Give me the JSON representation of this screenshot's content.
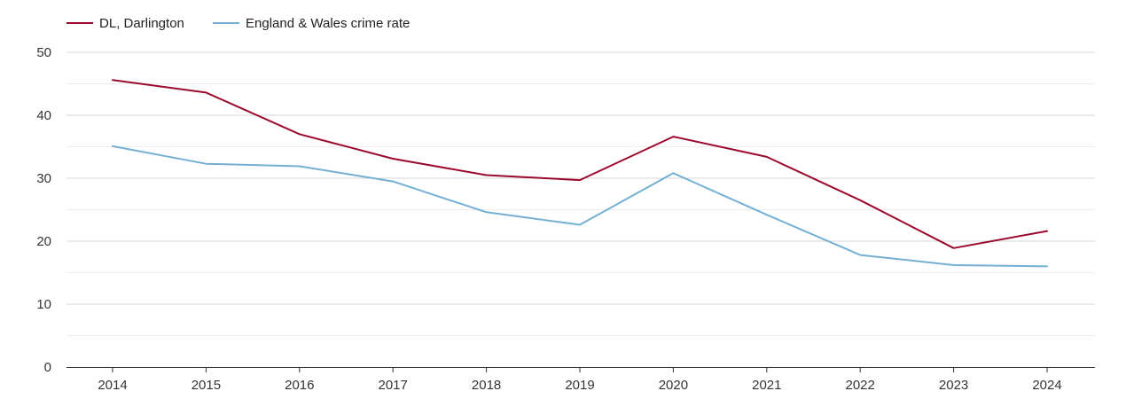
{
  "chart_data": {
    "type": "line",
    "title": "",
    "xlabel": "",
    "ylabel": "",
    "categories": [
      "2014",
      "2015",
      "2016",
      "2017",
      "2018",
      "2019",
      "2020",
      "2021",
      "2022",
      "2023",
      "2024"
    ],
    "ylim": [
      0,
      50
    ],
    "yticks": [
      0,
      10,
      20,
      30,
      40,
      50
    ],
    "grid": true,
    "legend_position": "top-left",
    "series": [
      {
        "name": "DL, Darlington",
        "color": "#9b0a2c",
        "values": [
          45.6,
          43.6,
          37.0,
          33.1,
          30.5,
          29.7,
          36.6,
          33.4,
          26.5,
          18.9,
          21.6
        ]
      },
      {
        "name": "England & Wales crime rate",
        "color": "#74afd4",
        "values": [
          35.1,
          32.3,
          31.9,
          29.5,
          24.6,
          22.6,
          30.8,
          24.2,
          17.8,
          16.2,
          16.0
        ]
      }
    ]
  }
}
